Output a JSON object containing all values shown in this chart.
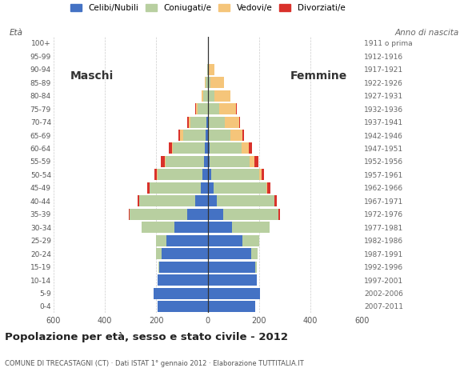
{
  "age_groups": [
    "0-4",
    "5-9",
    "10-14",
    "15-19",
    "20-24",
    "25-29",
    "30-34",
    "35-39",
    "40-44",
    "45-49",
    "50-54",
    "55-59",
    "60-64",
    "65-69",
    "70-74",
    "75-79",
    "80-84",
    "85-89",
    "90-94",
    "95-99",
    "100+"
  ],
  "birth_years": [
    "2007-2011",
    "2002-2006",
    "1997-2001",
    "1992-1996",
    "1987-1991",
    "1982-1986",
    "1977-1981",
    "1972-1976",
    "1967-1971",
    "1962-1966",
    "1957-1961",
    "1952-1956",
    "1947-1951",
    "1942-1946",
    "1937-1941",
    "1932-1936",
    "1927-1931",
    "1922-1926",
    "1917-1921",
    "1912-1916",
    "1911 o prima"
  ],
  "males": {
    "celibi": [
      195,
      210,
      195,
      188,
      180,
      160,
      130,
      78,
      48,
      28,
      20,
      15,
      12,
      8,
      4,
      0,
      0,
      0,
      0,
      0,
      0
    ],
    "coniugati": [
      0,
      0,
      0,
      4,
      20,
      42,
      128,
      225,
      218,
      198,
      175,
      148,
      122,
      88,
      62,
      38,
      18,
      8,
      2,
      0,
      0
    ],
    "vedovi": [
      0,
      0,
      0,
      0,
      0,
      0,
      0,
      0,
      0,
      1,
      2,
      4,
      6,
      10,
      8,
      6,
      4,
      2,
      0,
      0,
      0
    ],
    "divorziati": [
      0,
      0,
      0,
      0,
      0,
      0,
      0,
      3,
      5,
      8,
      11,
      14,
      12,
      7,
      4,
      3,
      2,
      0,
      0,
      0,
      0
    ]
  },
  "females": {
    "celibi": [
      185,
      205,
      190,
      185,
      170,
      135,
      95,
      60,
      35,
      22,
      13,
      9,
      7,
      4,
      2,
      0,
      0,
      0,
      0,
      0,
      0
    ],
    "coniugati": [
      0,
      0,
      0,
      6,
      25,
      65,
      145,
      215,
      225,
      205,
      188,
      155,
      125,
      85,
      65,
      45,
      25,
      12,
      4,
      1,
      0
    ],
    "vedovi": [
      0,
      0,
      0,
      0,
      0,
      0,
      0,
      0,
      1,
      4,
      8,
      18,
      28,
      45,
      55,
      65,
      62,
      52,
      22,
      5,
      0
    ],
    "divorziati": [
      0,
      0,
      0,
      0,
      0,
      0,
      2,
      7,
      7,
      14,
      11,
      14,
      14,
      7,
      4,
      2,
      2,
      0,
      0,
      0,
      0
    ]
  },
  "colors": {
    "celibi": "#4472c4",
    "coniugati": "#b8cfa0",
    "vedovi": "#f5c57a",
    "divorziati": "#d9312b"
  },
  "xlim": 600,
  "title": "Popolazione per età, sesso e stato civile - 2012",
  "subtitle": "COMUNE DI TRECASTAGNI (CT) · Dati ISTAT 1° gennaio 2012 · Elaborazione TUTTITALIA.IT",
  "legend_labels": [
    "Celibi/Nubili",
    "Coniugati/e",
    "Vedovi/e",
    "Divorziati/e"
  ],
  "background_color": "#ffffff"
}
